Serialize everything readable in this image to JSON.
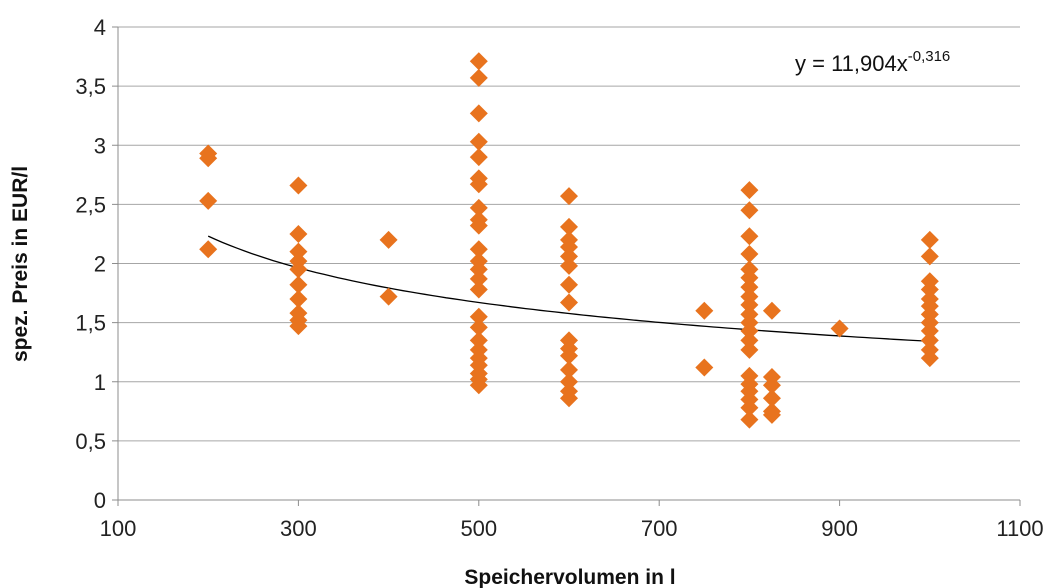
{
  "chart_data": {
    "type": "scatter",
    "xlabel": "Speichervolumen in l",
    "ylabel": "spez. Preis in EUR/l",
    "xlim": [
      100,
      1100
    ],
    "ylim": [
      0,
      4
    ],
    "x_ticks": [
      100,
      300,
      500,
      700,
      900,
      1100
    ],
    "x_tick_labels": [
      "100",
      "300",
      "500",
      "700",
      "900",
      "1100"
    ],
    "y_ticks": [
      0,
      0.5,
      1,
      1.5,
      2,
      2.5,
      3,
      3.5,
      4
    ],
    "y_tick_labels": [
      "0",
      "0,5",
      "1",
      "1,5",
      "2",
      "2,5",
      "3",
      "3,5",
      "4"
    ],
    "grid": "horizontal",
    "marker": "diamond",
    "marker_color": "#E8731E",
    "trendline_color": "#000000",
    "equation": {
      "prefix": "y = 11,904x",
      "exponent": "-0,316",
      "coefficient": 11.904,
      "power": -0.316,
      "x_range": [
        200,
        1000
      ]
    },
    "points": [
      {
        "x": 200,
        "y": 2.93
      },
      {
        "x": 200,
        "y": 2.89
      },
      {
        "x": 200,
        "y": 2.53
      },
      {
        "x": 200,
        "y": 2.12
      },
      {
        "x": 300,
        "y": 2.66
      },
      {
        "x": 300,
        "y": 2.25
      },
      {
        "x": 300,
        "y": 2.1
      },
      {
        "x": 300,
        "y": 2.02
      },
      {
        "x": 300,
        "y": 1.95
      },
      {
        "x": 300,
        "y": 1.82
      },
      {
        "x": 300,
        "y": 1.7
      },
      {
        "x": 300,
        "y": 1.58
      },
      {
        "x": 300,
        "y": 1.52
      },
      {
        "x": 300,
        "y": 1.47
      },
      {
        "x": 400,
        "y": 2.2
      },
      {
        "x": 400,
        "y": 1.72
      },
      {
        "x": 500,
        "y": 3.71
      },
      {
        "x": 500,
        "y": 3.57
      },
      {
        "x": 500,
        "y": 3.27
      },
      {
        "x": 500,
        "y": 3.03
      },
      {
        "x": 500,
        "y": 2.9
      },
      {
        "x": 500,
        "y": 2.72
      },
      {
        "x": 500,
        "y": 2.67
      },
      {
        "x": 500,
        "y": 2.47
      },
      {
        "x": 500,
        "y": 2.37
      },
      {
        "x": 500,
        "y": 2.32
      },
      {
        "x": 500,
        "y": 2.12
      },
      {
        "x": 500,
        "y": 2.02
      },
      {
        "x": 500,
        "y": 1.95
      },
      {
        "x": 500,
        "y": 1.87
      },
      {
        "x": 500,
        "y": 1.78
      },
      {
        "x": 500,
        "y": 1.55
      },
      {
        "x": 500,
        "y": 1.46
      },
      {
        "x": 500,
        "y": 1.35
      },
      {
        "x": 500,
        "y": 1.27
      },
      {
        "x": 500,
        "y": 1.2
      },
      {
        "x": 500,
        "y": 1.14
      },
      {
        "x": 500,
        "y": 1.07
      },
      {
        "x": 500,
        "y": 1.02
      },
      {
        "x": 500,
        "y": 0.97
      },
      {
        "x": 600,
        "y": 2.57
      },
      {
        "x": 600,
        "y": 2.31
      },
      {
        "x": 600,
        "y": 2.2
      },
      {
        "x": 600,
        "y": 2.14
      },
      {
        "x": 600,
        "y": 2.06
      },
      {
        "x": 600,
        "y": 1.98
      },
      {
        "x": 600,
        "y": 1.82
      },
      {
        "x": 600,
        "y": 1.67
      },
      {
        "x": 600,
        "y": 1.35
      },
      {
        "x": 600,
        "y": 1.28
      },
      {
        "x": 600,
        "y": 1.22
      },
      {
        "x": 600,
        "y": 1.1
      },
      {
        "x": 600,
        "y": 1.0
      },
      {
        "x": 600,
        "y": 0.92
      },
      {
        "x": 600,
        "y": 0.86
      },
      {
        "x": 750,
        "y": 1.6
      },
      {
        "x": 750,
        "y": 1.12
      },
      {
        "x": 800,
        "y": 2.62
      },
      {
        "x": 800,
        "y": 2.45
      },
      {
        "x": 800,
        "y": 2.23
      },
      {
        "x": 800,
        "y": 2.08
      },
      {
        "x": 800,
        "y": 1.95
      },
      {
        "x": 800,
        "y": 1.88
      },
      {
        "x": 800,
        "y": 1.8
      },
      {
        "x": 800,
        "y": 1.72
      },
      {
        "x": 800,
        "y": 1.65
      },
      {
        "x": 800,
        "y": 1.57
      },
      {
        "x": 800,
        "y": 1.5
      },
      {
        "x": 800,
        "y": 1.43
      },
      {
        "x": 800,
        "y": 1.35
      },
      {
        "x": 800,
        "y": 1.27
      },
      {
        "x": 800,
        "y": 1.05
      },
      {
        "x": 800,
        "y": 0.98
      },
      {
        "x": 800,
        "y": 0.92
      },
      {
        "x": 800,
        "y": 0.85
      },
      {
        "x": 800,
        "y": 0.78
      },
      {
        "x": 800,
        "y": 0.68
      },
      {
        "x": 825,
        "y": 1.6
      },
      {
        "x": 825,
        "y": 1.04
      },
      {
        "x": 825,
        "y": 0.97
      },
      {
        "x": 825,
        "y": 0.86
      },
      {
        "x": 825,
        "y": 0.75
      },
      {
        "x": 825,
        "y": 0.72
      },
      {
        "x": 900,
        "y": 1.45
      },
      {
        "x": 1000,
        "y": 2.2
      },
      {
        "x": 1000,
        "y": 2.06
      },
      {
        "x": 1000,
        "y": 1.85
      },
      {
        "x": 1000,
        "y": 1.78
      },
      {
        "x": 1000,
        "y": 1.7
      },
      {
        "x": 1000,
        "y": 1.64
      },
      {
        "x": 1000,
        "y": 1.57
      },
      {
        "x": 1000,
        "y": 1.5
      },
      {
        "x": 1000,
        "y": 1.43
      },
      {
        "x": 1000,
        "y": 1.35
      },
      {
        "x": 1000,
        "y": 1.27
      },
      {
        "x": 1000,
        "y": 1.2
      }
    ]
  }
}
